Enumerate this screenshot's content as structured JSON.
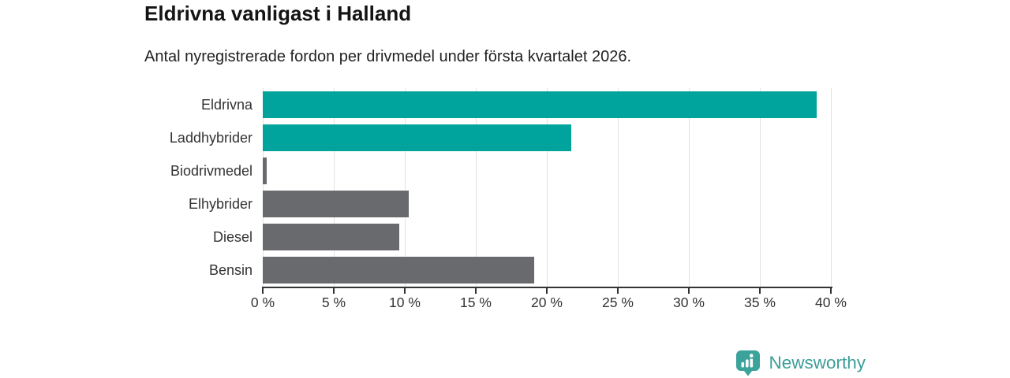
{
  "header": {
    "title": "Eldrivna vanligast i Halland",
    "subtitle": "Antal nyregistrerade fordon per drivmedel under första kvartalet 2026."
  },
  "chart_data": {
    "type": "bar",
    "orientation": "horizontal",
    "title": "Eldrivna vanligast i Halland",
    "subtitle": "Antal nyregistrerade fordon per drivmedel under första kvartalet 2026.",
    "categories": [
      "Eldrivna",
      "Laddhybrider",
      "Biodrivmedel",
      "Elhybrider",
      "Diesel",
      "Bensin"
    ],
    "values": [
      39.0,
      21.7,
      0.3,
      10.3,
      9.6,
      19.1
    ],
    "unit": "%",
    "bar_colors": [
      "#00a49c",
      "#00a49c",
      "#696a6e",
      "#696a6e",
      "#696a6e",
      "#696a6e"
    ],
    "xlabel": "",
    "ylabel": "",
    "xlim": [
      0,
      40
    ],
    "x_tick_step": 5,
    "x_tick_labels": [
      "0 %",
      "5 %",
      "10 %",
      "15 %",
      "20 %",
      "25 %",
      "30 %",
      "35 %",
      "40 %"
    ],
    "grid": true,
    "legend": false,
    "colors": {
      "highlight_teal": "#00a49c",
      "neutral_gray": "#696a6e",
      "gridline": "#e2e2e2",
      "axis": "#333333",
      "text": "#333333"
    }
  },
  "branding": {
    "logo_text": "Newsworthy",
    "logo_icon": "bar-chart-speech-bubble-icon",
    "logo_color": "#3b9e98"
  }
}
